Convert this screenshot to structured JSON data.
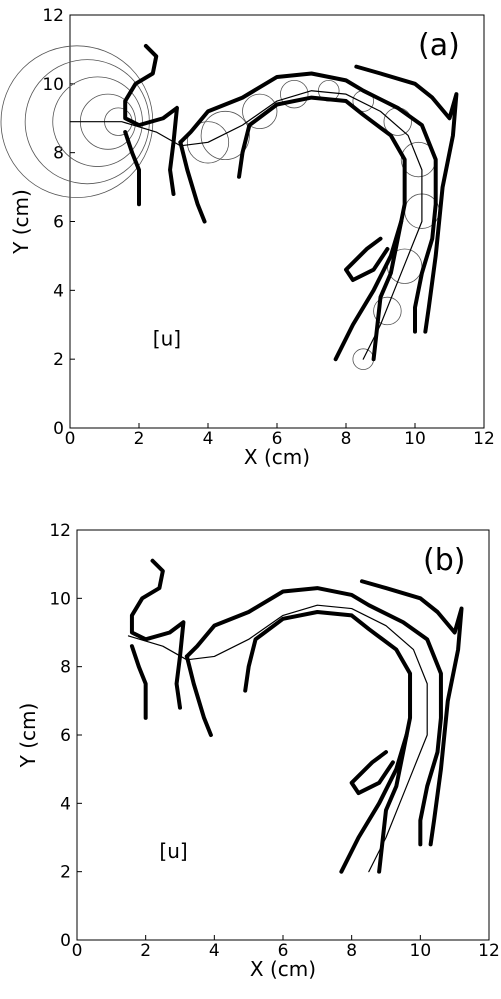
{
  "chart_data": [
    {
      "type": "line",
      "annotation": "(a)",
      "note": "[u]",
      "xlabel": "X (cm)",
      "ylabel": "Y (cm)",
      "xlim": [
        0,
        12
      ],
      "ylim": [
        0,
        12
      ],
      "xticks": [
        0,
        2,
        4,
        6,
        8,
        10,
        12
      ],
      "yticks": [
        0,
        2,
        4,
        6,
        8,
        10,
        12
      ],
      "series": [
        {
          "color": "#000",
          "x": [
            2.2,
            2.5,
            2.4,
            1.9,
            1.6,
            1.6,
            2.0,
            2.7,
            3.1,
            3.0,
            2.9,
            3.0
          ],
          "values": [
            11.1,
            10.8,
            10.3,
            10.0,
            9.5,
            9.0,
            8.8,
            9.0,
            9.3,
            8.3,
            7.5,
            6.8
          ]
        },
        {
          "color": "#000",
          "x": [
            1.6,
            1.8,
            2.0,
            2.0
          ],
          "values": [
            8.6,
            8.0,
            7.5,
            6.5
          ]
        },
        {
          "color": "#000",
          "x": [
            3.2,
            3.4,
            3.7,
            3.9
          ],
          "values": [
            8.3,
            7.5,
            6.5,
            6.0
          ]
        },
        {
          "color": "#000",
          "x": [
            3.2,
            3.5,
            4.0,
            5.0,
            6.0,
            7.0,
            8.0,
            8.5,
            9.5,
            10.2,
            10.6,
            10.6,
            10.5,
            10.2,
            10.0,
            10.0
          ],
          "values": [
            8.3,
            8.6,
            9.2,
            9.6,
            10.2,
            10.3,
            10.1,
            9.8,
            9.3,
            8.8,
            7.8,
            6.5,
            5.5,
            4.5,
            3.5,
            2.8
          ]
        },
        {
          "color": "#000",
          "x": [
            4.9,
            5.0,
            5.2,
            6.0,
            7.0,
            8.0,
            8.5,
            9.3,
            9.7,
            9.7,
            9.5,
            9.3,
            9.0,
            8.8
          ],
          "values": [
            7.3,
            8.0,
            8.8,
            9.4,
            9.6,
            9.5,
            9.1,
            8.5,
            7.8,
            6.5,
            5.5,
            4.5,
            3.8,
            2.0
          ]
        },
        {
          "color": "#000",
          "x": [
            9.0,
            8.6,
            8.0,
            8.2,
            8.8,
            9.2
          ],
          "values": [
            5.5,
            5.2,
            4.6,
            4.3,
            4.6,
            5.2
          ]
        },
        {
          "color": "#000",
          "x": [
            7.7,
            8.2,
            8.8,
            9.3,
            9.6
          ],
          "values": [
            2.0,
            3.0,
            4.0,
            5.0,
            6.0
          ]
        },
        {
          "color": "#000",
          "x": [
            8.3,
            9.0,
            10.0,
            10.5,
            11.0,
            11.2,
            11.1,
            10.8,
            10.6,
            10.4,
            10.3
          ],
          "values": [
            10.5,
            10.3,
            10.0,
            9.6,
            9.0,
            9.7,
            8.5,
            7.0,
            5.0,
            3.5,
            2.8
          ]
        },
        {
          "color": "#000",
          "thin": true,
          "x": [
            0,
            1.5,
            2.5,
            3.2,
            4.0,
            5.0,
            6.0,
            7.0,
            8.0,
            9.0,
            9.8,
            10.2,
            10.2,
            9.8,
            9.4,
            9.0,
            8.5
          ],
          "values": [
            8.9,
            8.9,
            8.6,
            8.2,
            8.3,
            8.8,
            9.5,
            9.8,
            9.7,
            9.2,
            8.5,
            7.5,
            6.0,
            5.0,
            4.0,
            3.0,
            2.0
          ]
        }
      ],
      "circles": {
        "x": [
          0.2,
          0.5,
          0.8,
          1.1,
          1.4,
          4.0,
          4.5,
          5.5,
          6.5,
          7.5,
          8.5,
          9.5,
          10.1,
          10.2,
          9.7,
          9.2,
          8.5
        ],
        "y": [
          8.9,
          8.9,
          8.9,
          8.9,
          8.9,
          8.3,
          8.5,
          9.2,
          9.7,
          9.8,
          9.5,
          8.9,
          7.8,
          6.3,
          4.7,
          3.4,
          2.0
        ],
        "r": [
          2.2,
          1.8,
          1.3,
          0.8,
          0.4,
          0.6,
          0.7,
          0.5,
          0.4,
          0.3,
          0.3,
          0.4,
          0.5,
          0.5,
          0.5,
          0.4,
          0.3
        ]
      }
    },
    {
      "type": "line",
      "annotation": "(b)",
      "note": "[u]",
      "xlabel": "X (cm)",
      "ylabel": "Y (cm)",
      "xlim": [
        0,
        12
      ],
      "ylim": [
        0,
        12
      ],
      "xticks": [
        0,
        2,
        4,
        6,
        8,
        10,
        12
      ],
      "yticks": [
        0,
        2,
        4,
        6,
        8,
        10,
        12
      ],
      "series": [
        {
          "color": "#000",
          "x": [
            2.2,
            2.5,
            2.4,
            1.9,
            1.6,
            1.6,
            2.0,
            2.7,
            3.1,
            3.0,
            2.9,
            3.0
          ],
          "values": [
            11.1,
            10.8,
            10.3,
            10.0,
            9.5,
            9.0,
            8.8,
            9.0,
            9.3,
            8.3,
            7.5,
            6.8
          ]
        },
        {
          "color": "#000",
          "x": [
            1.6,
            1.8,
            2.0,
            2.0
          ],
          "values": [
            8.6,
            8.0,
            7.5,
            6.5
          ]
        },
        {
          "color": "#000",
          "x": [
            3.2,
            3.4,
            3.7,
            3.9
          ],
          "values": [
            8.3,
            7.5,
            6.5,
            6.0
          ]
        },
        {
          "color": "#000",
          "x": [
            3.2,
            3.5,
            4.0,
            5.0,
            6.0,
            7.0,
            8.0,
            8.5,
            9.5,
            10.2,
            10.6,
            10.6,
            10.5,
            10.2,
            10.0,
            10.0
          ],
          "values": [
            8.3,
            8.6,
            9.2,
            9.6,
            10.2,
            10.3,
            10.1,
            9.8,
            9.3,
            8.8,
            7.8,
            6.5,
            5.5,
            4.5,
            3.5,
            2.8
          ]
        },
        {
          "color": "#000",
          "x": [
            4.9,
            5.0,
            5.2,
            6.0,
            7.0,
            8.0,
            8.5,
            9.3,
            9.7,
            9.7,
            9.5,
            9.3,
            9.0,
            8.8
          ],
          "values": [
            7.3,
            8.0,
            8.8,
            9.4,
            9.6,
            9.5,
            9.1,
            8.5,
            7.8,
            6.5,
            5.5,
            4.5,
            3.8,
            2.0
          ]
        },
        {
          "color": "#000",
          "x": [
            9.0,
            8.6,
            8.0,
            8.2,
            8.8,
            9.2
          ],
          "values": [
            5.5,
            5.2,
            4.6,
            4.3,
            4.6,
            5.2
          ]
        },
        {
          "color": "#000",
          "x": [
            7.7,
            8.2,
            8.8,
            9.3,
            9.6
          ],
          "values": [
            2.0,
            3.0,
            4.0,
            5.0,
            6.0
          ]
        },
        {
          "color": "#000",
          "x": [
            8.3,
            9.0,
            10.0,
            10.5,
            11.0,
            11.2,
            11.1,
            10.8,
            10.6,
            10.4,
            10.3
          ],
          "values": [
            10.5,
            10.3,
            10.0,
            9.6,
            9.0,
            9.7,
            8.5,
            7.0,
            5.0,
            3.5,
            2.8
          ]
        },
        {
          "color": "#000",
          "thin": true,
          "x": [
            1.5,
            2.5,
            3.2,
            4.0,
            5.0,
            6.0,
            7.0,
            8.0,
            9.0,
            9.8,
            10.2,
            10.2,
            9.8,
            9.4,
            9.0,
            8.5
          ],
          "values": [
            8.9,
            8.6,
            8.2,
            8.3,
            8.8,
            9.5,
            9.8,
            9.7,
            9.2,
            8.5,
            7.5,
            6.0,
            5.0,
            4.0,
            3.0,
            2.0
          ]
        }
      ]
    }
  ]
}
